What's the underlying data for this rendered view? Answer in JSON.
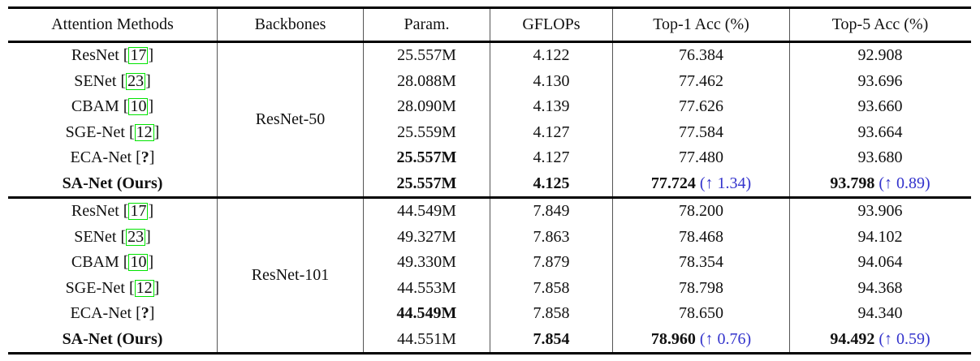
{
  "table": {
    "columns": [
      "Attention Methods",
      "Backbones",
      "Param.",
      "GFLOPs",
      "Top-1 Acc (%)",
      "Top-5 Acc (%)"
    ],
    "colors": {
      "citation_box": "#00e400",
      "improvement_text": "#3333cc",
      "rule": "#000000"
    },
    "up_arrow": "↑",
    "blocks": [
      {
        "backbone": "ResNet-50",
        "rows": [
          {
            "method": "ResNet",
            "method_bold": false,
            "cite": "17",
            "cite_boxed": true,
            "cite_bold": false,
            "param": "25.557M",
            "param_bold": false,
            "gflops": "4.122",
            "gflops_bold": false,
            "top1": "76.384",
            "top1_bold": false,
            "top1_delta": "",
            "top5": "92.908",
            "top5_bold": false,
            "top5_delta": ""
          },
          {
            "method": "SENet",
            "method_bold": false,
            "cite": "23",
            "cite_boxed": true,
            "cite_bold": false,
            "param": "28.088M",
            "param_bold": false,
            "gflops": "4.130",
            "gflops_bold": false,
            "top1": "77.462",
            "top1_bold": false,
            "top1_delta": "",
            "top5": "93.696",
            "top5_bold": false,
            "top5_delta": ""
          },
          {
            "method": "CBAM",
            "method_bold": false,
            "cite": "10",
            "cite_boxed": true,
            "cite_bold": false,
            "param": "28.090M",
            "param_bold": false,
            "gflops": "4.139",
            "gflops_bold": false,
            "top1": "77.626",
            "top1_bold": false,
            "top1_delta": "",
            "top5": "93.660",
            "top5_bold": false,
            "top5_delta": ""
          },
          {
            "method": "SGE-Net",
            "method_bold": false,
            "cite": "12",
            "cite_boxed": true,
            "cite_bold": false,
            "param": "25.559M",
            "param_bold": false,
            "gflops": "4.127",
            "gflops_bold": false,
            "top1": "77.584",
            "top1_bold": false,
            "top1_delta": "",
            "top5": "93.664",
            "top5_bold": false,
            "top5_delta": ""
          },
          {
            "method": "ECA-Net",
            "method_bold": false,
            "cite": "?",
            "cite_boxed": false,
            "cite_bold": true,
            "param": "25.557M",
            "param_bold": true,
            "gflops": "4.127",
            "gflops_bold": false,
            "top1": "77.480",
            "top1_bold": false,
            "top1_delta": "",
            "top5": "93.680",
            "top5_bold": false,
            "top5_delta": ""
          },
          {
            "method": "SA-Net (Ours)",
            "method_bold": true,
            "cite": "",
            "cite_boxed": false,
            "cite_bold": false,
            "param": "25.557M",
            "param_bold": true,
            "gflops": "4.125",
            "gflops_bold": true,
            "top1": "77.724",
            "top1_bold": true,
            "top1_delta": "(↑ 1.34)",
            "top5": "93.798",
            "top5_bold": true,
            "top5_delta": "(↑ 0.89)"
          }
        ]
      },
      {
        "backbone": "ResNet-101",
        "rows": [
          {
            "method": "ResNet",
            "method_bold": false,
            "cite": "17",
            "cite_boxed": true,
            "cite_bold": false,
            "param": "44.549M",
            "param_bold": false,
            "gflops": "7.849",
            "gflops_bold": false,
            "top1": "78.200",
            "top1_bold": false,
            "top1_delta": "",
            "top5": "93.906",
            "top5_bold": false,
            "top5_delta": ""
          },
          {
            "method": "SENet",
            "method_bold": false,
            "cite": "23",
            "cite_boxed": true,
            "cite_bold": false,
            "param": "49.327M",
            "param_bold": false,
            "gflops": "7.863",
            "gflops_bold": false,
            "top1": "78.468",
            "top1_bold": false,
            "top1_delta": "",
            "top5": "94.102",
            "top5_bold": false,
            "top5_delta": ""
          },
          {
            "method": "CBAM",
            "method_bold": false,
            "cite": "10",
            "cite_boxed": true,
            "cite_bold": false,
            "param": "49.330M",
            "param_bold": false,
            "gflops": "7.879",
            "gflops_bold": false,
            "top1": "78.354",
            "top1_bold": false,
            "top1_delta": "",
            "top5": "94.064",
            "top5_bold": false,
            "top5_delta": ""
          },
          {
            "method": "SGE-Net",
            "method_bold": false,
            "cite": "12",
            "cite_boxed": true,
            "cite_bold": false,
            "param": "44.553M",
            "param_bold": false,
            "gflops": "7.858",
            "gflops_bold": false,
            "top1": "78.798",
            "top1_bold": false,
            "top1_delta": "",
            "top5": "94.368",
            "top5_bold": false,
            "top5_delta": ""
          },
          {
            "method": "ECA-Net",
            "method_bold": false,
            "cite": "?",
            "cite_boxed": false,
            "cite_bold": true,
            "param": "44.549M",
            "param_bold": true,
            "gflops": "7.858",
            "gflops_bold": false,
            "top1": "78.650",
            "top1_bold": false,
            "top1_delta": "",
            "top5": "94.340",
            "top5_bold": false,
            "top5_delta": ""
          },
          {
            "method": "SA-Net (Ours)",
            "method_bold": true,
            "cite": "",
            "cite_boxed": false,
            "cite_bold": false,
            "param": "44.551M",
            "param_bold": false,
            "gflops": "7.854",
            "gflops_bold": true,
            "top1": "78.960",
            "top1_bold": true,
            "top1_delta": "(↑ 0.76)",
            "top5": "94.492",
            "top5_bold": true,
            "top5_delta": "(↑ 0.59)"
          }
        ]
      }
    ]
  }
}
